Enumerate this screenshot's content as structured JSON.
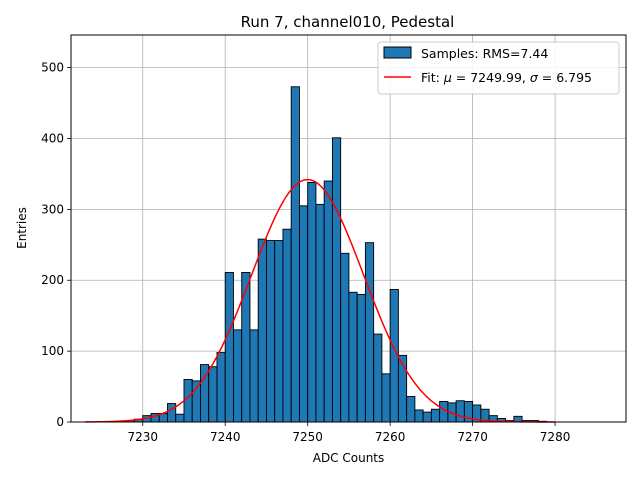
{
  "chart_data": {
    "type": "bar",
    "title": "Run 7, channel010, Pedestal",
    "xlabel": "ADC Counts",
    "ylabel": "Entries",
    "xlim": [
      7221.3,
      7288.6
    ],
    "ylim": [
      0,
      546
    ],
    "xticks": [
      7230,
      7240,
      7250,
      7260,
      7270,
      7280
    ],
    "yticks": [
      0,
      100,
      200,
      300,
      400,
      500
    ],
    "grid": true,
    "legend_position": "top-right",
    "colors": {
      "bars": "#1f77b4",
      "bar_edge": "#000000",
      "fit": "#ff0000",
      "grid": "#b0b0b0"
    },
    "legend": {
      "samples_label": "Samples: RMS=7.44",
      "fit_prefix": "Fit: ",
      "fit_mu_symbol": "μ",
      "fit_mu_value": " = 7249.99, ",
      "fit_sigma_symbol": "σ",
      "fit_sigma_value": " = 6.795"
    },
    "bin_width": 1,
    "bins_x": [
      7228,
      7229,
      7230,
      7231,
      7232,
      7233,
      7234,
      7235,
      7236,
      7237,
      7238,
      7239,
      7240,
      7241,
      7242,
      7243,
      7244,
      7245,
      7246,
      7247,
      7248,
      7249,
      7250,
      7251,
      7252,
      7253,
      7254,
      7255,
      7256,
      7257,
      7258,
      7259,
      7260,
      7261,
      7262,
      7263,
      7264,
      7265,
      7266,
      7267,
      7268,
      7269,
      7270,
      7271,
      7272,
      7273,
      7274,
      7275,
      7276,
      7277,
      7278
    ],
    "values": [
      2,
      4,
      9,
      12,
      12,
      26,
      11,
      60,
      58,
      81,
      78,
      98,
      211,
      130,
      211,
      130,
      258,
      256,
      256,
      272,
      473,
      305,
      338,
      307,
      340,
      401,
      238,
      183,
      180,
      253,
      124,
      68,
      187,
      94,
      36,
      17,
      14,
      18,
      29,
      27,
      30,
      29,
      24,
      18,
      9,
      5,
      2,
      8,
      2,
      2,
      1
    ],
    "fit": {
      "mu": 7249.99,
      "sigma": 6.795,
      "amplitude": 342,
      "x_range": [
        7223,
        7280
      ]
    }
  }
}
